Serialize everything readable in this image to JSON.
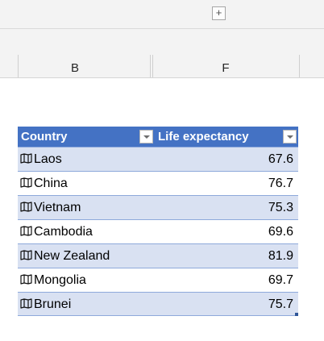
{
  "column_bar": {
    "expand_symbol": "+",
    "columns": [
      "B",
      "F"
    ]
  },
  "table": {
    "headers": [
      "Country",
      "Life expectancy"
    ],
    "rows": [
      {
        "country": "Laos",
        "life": "67.6"
      },
      {
        "country": "China",
        "life": "76.7"
      },
      {
        "country": "Vietnam",
        "life": "75.3"
      },
      {
        "country": "Cambodia",
        "life": "69.6"
      },
      {
        "country": "New Zealand",
        "life": "81.9"
      },
      {
        "country": "Mongolia",
        "life": "69.7"
      },
      {
        "country": "Brunei",
        "life": "75.7"
      }
    ],
    "row_icon": "map-icon",
    "colors": {
      "header": "#4472c4",
      "band": "#d9e1f2",
      "border": "#8ea9db"
    }
  }
}
